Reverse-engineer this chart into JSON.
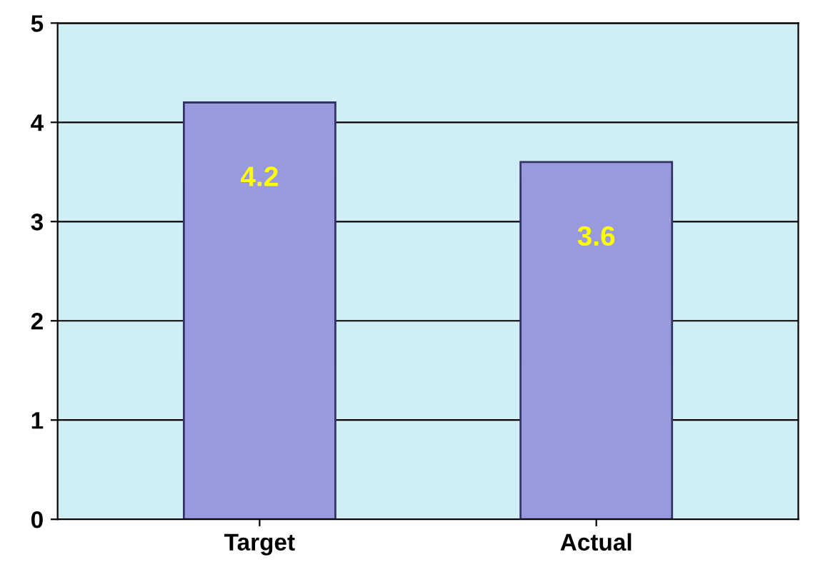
{
  "chart_data": {
    "type": "bar",
    "categories": [
      "Target",
      "Actual"
    ],
    "values": [
      4.2,
      3.6
    ],
    "color": "#9999dd",
    "ylim": [
      0,
      5
    ],
    "yticks": [
      0,
      1,
      2,
      3,
      4,
      5
    ],
    "grid": "y",
    "data_labels": true,
    "legend": false
  }
}
